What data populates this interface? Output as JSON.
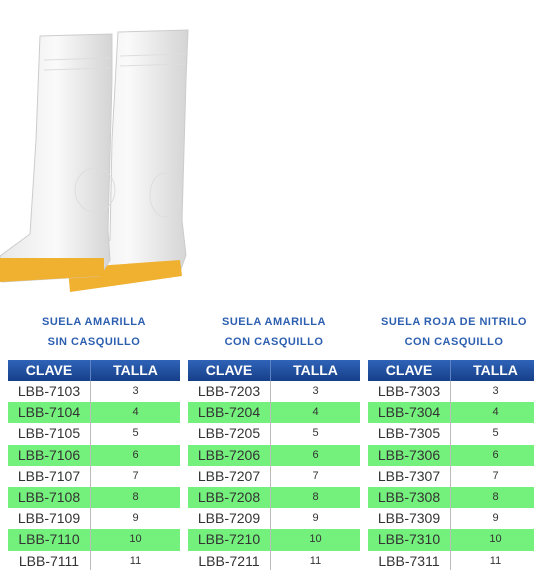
{
  "tables": [
    {
      "title": [
        "SUELA AMARILLA",
        "SIN CASQUILLO"
      ],
      "headers": [
        "CLAVE",
        "TALLA"
      ],
      "rows": [
        [
          "LBB-7103",
          3
        ],
        [
          "LBB-7104",
          4
        ],
        [
          "LBB-7105",
          5
        ],
        [
          "LBB-7106",
          6
        ],
        [
          "LBB-7107",
          7
        ],
        [
          "LBB-7108",
          8
        ],
        [
          "LBB-7109",
          9
        ],
        [
          "LBB-7110",
          10
        ],
        [
          "LBB-7111",
          11
        ]
      ]
    },
    {
      "title": [
        "SUELA AMARILLA",
        "CON CASQUILLO"
      ],
      "headers": [
        "CLAVE",
        "TALLA"
      ],
      "rows": [
        [
          "LBB-7203",
          3
        ],
        [
          "LBB-7204",
          4
        ],
        [
          "LBB-7205",
          5
        ],
        [
          "LBB-7206",
          6
        ],
        [
          "LBB-7207",
          7
        ],
        [
          "LBB-7208",
          8
        ],
        [
          "LBB-7209",
          9
        ],
        [
          "LBB-7210",
          10
        ],
        [
          "LBB-7211",
          11
        ]
      ]
    },
    {
      "title": [
        "SUELA ROJA DE NITRILO",
        "CON CASQUILLO"
      ],
      "headers": [
        "CLAVE",
        "TALLA"
      ],
      "rows": [
        [
          "LBB-7303",
          3
        ],
        [
          "LBB-7304",
          4
        ],
        [
          "LBB-7305",
          5
        ],
        [
          "LBB-7306",
          6
        ],
        [
          "LBB-7307",
          7
        ],
        [
          "LBB-7308",
          8
        ],
        [
          "LBB-7309",
          9
        ],
        [
          "LBB-7310",
          10
        ],
        [
          "LBB-7311",
          11
        ]
      ]
    }
  ]
}
